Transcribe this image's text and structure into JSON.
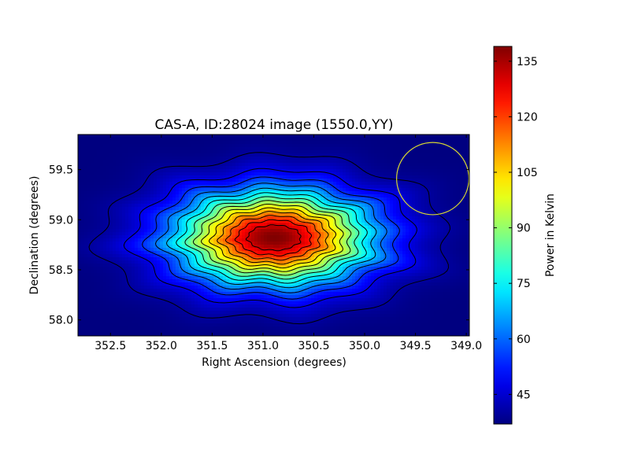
{
  "chart_data": {
    "type": "heatmap",
    "title": "CAS-A, ID:28024 image (1550.0,YY)",
    "xlabel": "Right Ascension (degrees)",
    "ylabel": "Declination (degrees)",
    "xlim": [
      352.82,
      348.97
    ],
    "ylim": [
      57.84,
      59.85
    ],
    "x_ticks": [
      "352.5",
      "352.0",
      "351.5",
      "351.0",
      "350.5",
      "350.0",
      "349.5",
      "349.0"
    ],
    "x_tick_values": [
      352.5,
      352.0,
      351.5,
      351.0,
      350.5,
      350.0,
      349.5,
      349.0
    ],
    "y_ticks": [
      "58.0",
      "58.5",
      "59.0",
      "59.5"
    ],
    "y_tick_values": [
      58.0,
      58.5,
      59.0,
      59.5
    ],
    "colorbar": {
      "label": "Power in Kelvin",
      "colormap": "jet",
      "range": [
        37,
        139
      ],
      "ticks": [
        "45",
        "60",
        "75",
        "90",
        "105",
        "120",
        "135"
      ],
      "tick_values": [
        45,
        60,
        75,
        90,
        105,
        120,
        135
      ]
    },
    "source": {
      "center_ra": 350.89,
      "center_dec": 58.82,
      "peak_kelvin": 139,
      "background_kelvin": 37
    },
    "contour_levels": [
      40,
      47,
      54,
      61,
      68,
      75,
      82,
      89,
      96,
      103,
      110,
      117,
      124,
      131
    ],
    "beam_circle": {
      "center_ra": 349.33,
      "center_dec": 59.41,
      "radius_dec": 0.36,
      "color": "#d8d832"
    },
    "grid": false
  }
}
